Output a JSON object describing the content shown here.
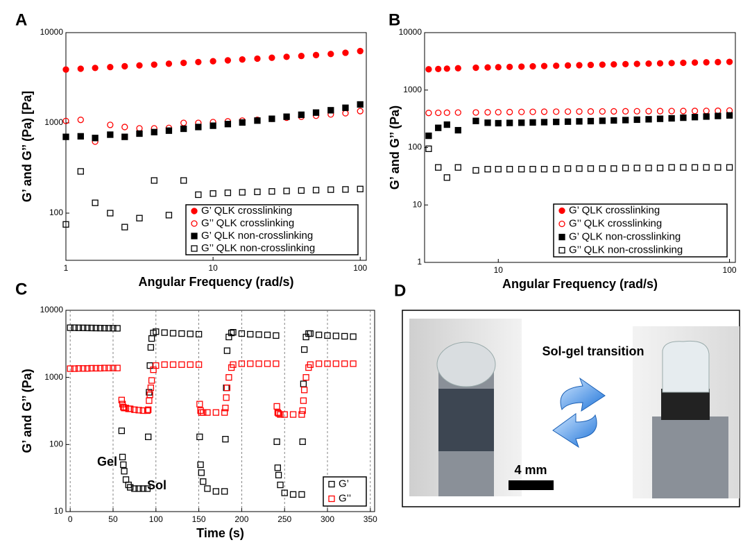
{
  "chart_data": [
    {
      "type": "scatter",
      "label": "A",
      "xlabel": "Angular Frequency (rad/s)",
      "ylabel": "G’ and G’’ (Pa) [Pa]",
      "xlog": true,
      "ylog": true,
      "xlim": [
        1,
        110
      ],
      "ylim": [
        30,
        10000
      ],
      "xticks": [
        1,
        10,
        100
      ],
      "yticks": [
        100,
        1000,
        10000
      ],
      "legend": "lower right",
      "x": [
        1,
        1.26,
        1.58,
        2.0,
        2.51,
        3.16,
        3.98,
        5.01,
        6.31,
        7.94,
        10,
        12.6,
        15.8,
        20,
        25.1,
        31.6,
        39.8,
        50.1,
        63.1,
        79.4,
        100
      ],
      "series": [
        {
          "name": "G’ QLK crosslinking",
          "color": "#ff0000",
          "marker": "circle",
          "filled": true,
          "values": [
            3900,
            3980,
            4060,
            4150,
            4240,
            4330,
            4420,
            4520,
            4620,
            4720,
            4820,
            4930,
            5040,
            5150,
            5270,
            5390,
            5510,
            5640,
            5800,
            5980,
            6250
          ]
        },
        {
          "name": "G’’ QLK crosslinking",
          "color": "#ff0000",
          "marker": "circle",
          "filled": false,
          "values": [
            1050,
            1080,
            620,
            950,
            900,
            870,
            870,
            880,
            1000,
            1000,
            1020,
            1040,
            1060,
            1080,
            1110,
            1140,
            1170,
            1200,
            1240,
            1280,
            1350
          ]
        },
        {
          "name": "G’ QLK non-crosslinking",
          "color": "#000000",
          "marker": "square",
          "filled": true,
          "values": [
            700,
            710,
            680,
            740,
            700,
            760,
            790,
            820,
            860,
            900,
            930,
            970,
            1010,
            1060,
            1110,
            1170,
            1230,
            1300,
            1380,
            1470,
            1600
          ]
        },
        {
          "name": "G’’ QLK non-crosslinking",
          "color": "#000000",
          "marker": "square",
          "filled": false,
          "values": [
            75,
            290,
            130,
            100,
            70,
            88,
            230,
            95,
            230,
            160,
            165,
            168,
            170,
            172,
            174,
            176,
            178,
            180,
            182,
            183,
            185
          ]
        }
      ]
    },
    {
      "type": "scatter",
      "label": "B",
      "xlabel": "Angular Frequency (rad/s)",
      "ylabel": "G’ and G’’ (Pa)",
      "xlog": true,
      "ylog": true,
      "xlim": [
        4.8,
        106
      ],
      "ylim": [
        1,
        10000
      ],
      "xticks": [
        10,
        100
      ],
      "yticks": [
        1,
        10,
        100,
        1000,
        10000
      ],
      "legend": "lower right",
      "x": [
        5,
        5.5,
        6,
        6.7,
        8,
        9,
        10,
        11.2,
        12.6,
        14.1,
        15.8,
        17.8,
        20,
        22.4,
        25.1,
        28.2,
        31.6,
        35.5,
        39.8,
        44.7,
        50.1,
        56.2,
        63.1,
        70.8,
        79.4,
        89.1,
        100
      ],
      "series": [
        {
          "name": "G’ QLK crosslinking",
          "color": "#ff0000",
          "marker": "circle",
          "filled": true,
          "values": [
            2300,
            2330,
            2360,
            2400,
            2450,
            2480,
            2500,
            2530,
            2560,
            2590,
            2620,
            2650,
            2680,
            2710,
            2740,
            2770,
            2800,
            2830,
            2860,
            2890,
            2920,
            2950,
            2980,
            3010,
            3040,
            3070,
            3100
          ]
        },
        {
          "name": "G’’ QLK crosslinking",
          "color": "#ff0000",
          "marker": "circle",
          "filled": false,
          "values": [
            400,
            402,
            404,
            406,
            408,
            410,
            412,
            414,
            416,
            418,
            420,
            421,
            422,
            423,
            424,
            425,
            426,
            427,
            428,
            429,
            430,
            431,
            432,
            433,
            434,
            436,
            440
          ]
        },
        {
          "name": "G’ QLK non-crosslinking",
          "color": "#000000",
          "marker": "square",
          "filled": true,
          "values": [
            160,
            220,
            250,
            200,
            290,
            270,
            265,
            268,
            270,
            273,
            276,
            279,
            282,
            285,
            288,
            292,
            296,
            300,
            305,
            310,
            316,
            322,
            330,
            338,
            346,
            354,
            362
          ]
        },
        {
          "name": "G’’ QLK non-crosslinking",
          "color": "#000000",
          "marker": "square",
          "filled": false,
          "values": [
            95,
            45,
            30,
            45,
            40,
            42,
            42,
            42,
            42,
            42,
            42,
            42,
            43,
            43,
            43,
            43,
            43,
            44,
            44,
            44,
            44,
            45,
            45,
            45,
            45,
            45,
            45
          ]
        }
      ]
    },
    {
      "type": "scatter",
      "label": "C",
      "xlabel": "Time (s)",
      "ylabel": "G’ and G’’ (Pa)",
      "xlog": false,
      "ylog": true,
      "xlim": [
        -5,
        355
      ],
      "ylim": [
        10,
        10000
      ],
      "xticks": [
        0,
        50,
        100,
        150,
        200,
        250,
        300,
        350
      ],
      "yticks": [
        10,
        100,
        1000,
        10000
      ],
      "xgrid": true,
      "legend": "lower right",
      "annotations": [
        "Gel",
        "Sol"
      ],
      "x": [
        0,
        5,
        10,
        15,
        20,
        25,
        30,
        35,
        40,
        45,
        50,
        55,
        60,
        61,
        62,
        63,
        65,
        68,
        70,
        75,
        80,
        85,
        90,
        91,
        92,
        93,
        94,
        95,
        97,
        100,
        110,
        120,
        130,
        140,
        150,
        151,
        152,
        153,
        155,
        160,
        170,
        180,
        181,
        182,
        183,
        185,
        188,
        190,
        200,
        210,
        220,
        230,
        240,
        241,
        242,
        243,
        245,
        250,
        260,
        270,
        271,
        272,
        273,
        275,
        278,
        280,
        290,
        300,
        310,
        320,
        330
      ],
      "series": [
        {
          "name": "G’",
          "color": "#000000",
          "marker": "square",
          "filled": false,
          "values": [
            5500,
            5500,
            5480,
            5470,
            5460,
            5450,
            5440,
            5430,
            5420,
            5410,
            5400,
            5390,
            160,
            65,
            50,
            40,
            30,
            25,
            23,
            22,
            22,
            22,
            22,
            130,
            600,
            1500,
            2800,
            3800,
            4600,
            4800,
            4650,
            4550,
            4500,
            4450,
            4400,
            130,
            50,
            38,
            28,
            22,
            20,
            20,
            120,
            700,
            2500,
            4000,
            4600,
            4700,
            4500,
            4400,
            4350,
            4300,
            4200,
            110,
            45,
            35,
            25,
            19,
            18,
            18,
            110,
            800,
            2600,
            4000,
            4500,
            4500,
            4300,
            4200,
            4150,
            4100,
            4050
          ]
        },
        {
          "name": "G’’",
          "color": "#ff0000",
          "marker": "square",
          "filled": false,
          "values": [
            1350,
            1350,
            1360,
            1360,
            1360,
            1370,
            1370,
            1370,
            1380,
            1380,
            1380,
            1380,
            460,
            400,
            360,
            350,
            350,
            340,
            340,
            330,
            325,
            320,
            320,
            330,
            450,
            550,
            700,
            900,
            1300,
            1500,
            1550,
            1550,
            1550,
            1550,
            1550,
            400,
            320,
            300,
            300,
            300,
            300,
            300,
            350,
            500,
            700,
            1000,
            1400,
            1550,
            1600,
            1600,
            1600,
            1600,
            1600,
            370,
            300,
            290,
            280,
            280,
            280,
            280,
            320,
            450,
            650,
            1000,
            1400,
            1550,
            1600,
            1600,
            1600,
            1600,
            1600
          ]
        }
      ]
    }
  ],
  "photo_panel": {
    "label": "D",
    "caption": "Sol-gel transition",
    "scale_bar": "4 mm"
  }
}
